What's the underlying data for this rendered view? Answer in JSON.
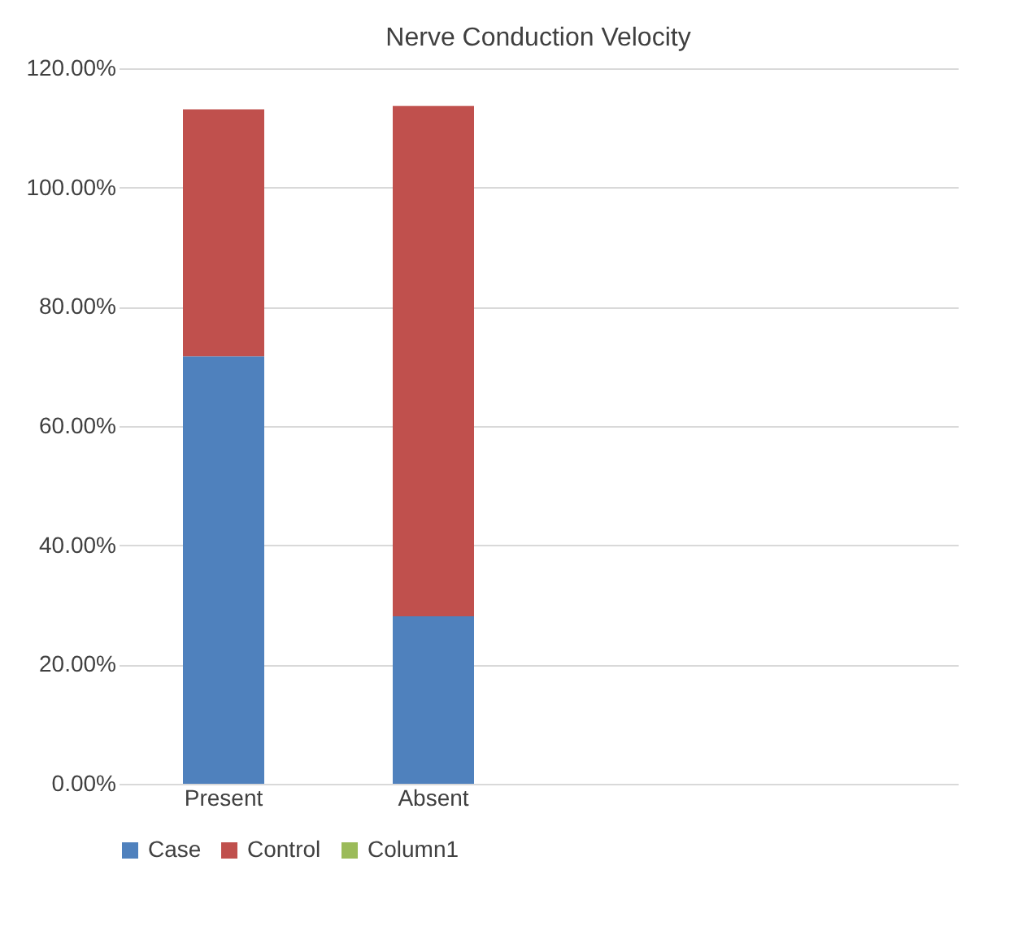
{
  "chart_data": {
    "type": "bar",
    "title": "Nerve Conduction Velocity",
    "stacked": true,
    "categories": [
      "Present",
      "Absent",
      null,
      null
    ],
    "series": [
      {
        "name": "Case",
        "color": "#4f81bd",
        "values": [
          71.7,
          28.1,
          null,
          null
        ]
      },
      {
        "name": "Control",
        "color": "#c0504d",
        "values": [
          41.4,
          85.6,
          null,
          null
        ]
      },
      {
        "name": "Column1",
        "color": "#9bbb59",
        "values": [
          null,
          null,
          null,
          null
        ]
      }
    ],
    "ylim": [
      0,
      120
    ],
    "yticks": [
      {
        "value": 0,
        "label": "0.00%"
      },
      {
        "value": 20,
        "label": "20.00%"
      },
      {
        "value": 40,
        "label": "40.00%"
      },
      {
        "value": 60,
        "label": "60.00%"
      },
      {
        "value": 80,
        "label": "80.00%"
      },
      {
        "value": 100,
        "label": "100.00%"
      },
      {
        "value": 120,
        "label": "120.00%"
      }
    ],
    "grid": "y",
    "legend": "bottom"
  }
}
